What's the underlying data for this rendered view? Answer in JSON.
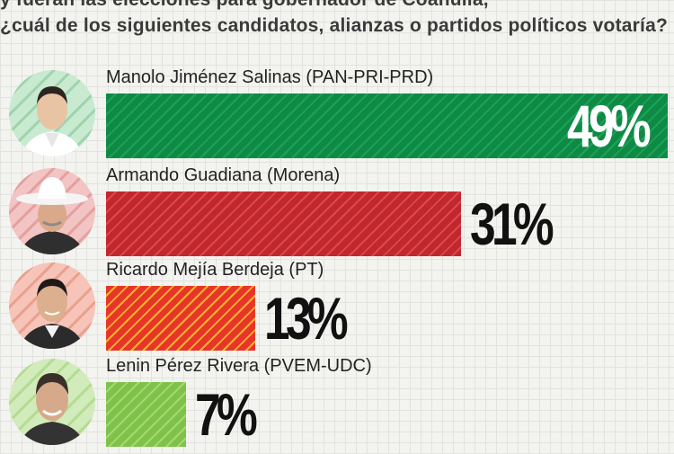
{
  "question": {
    "line1": "y fueran las elecciones para gobernador de Coahuila,",
    "line2": "¿cuál de los siguientes candidatos, alianzas o partidos políticos votaría?"
  },
  "chart_data": {
    "type": "bar",
    "orientation": "horizontal",
    "categories": [
      "Manolo Jiménez Salinas (PAN-PRI-PRD)",
      "Armando Guadiana (Morena)",
      "Ricardo Mejía Berdeja (PT)",
      "Lenin Pérez Rivera (PVEM-UDC)"
    ],
    "values": [
      49,
      31,
      13,
      7
    ],
    "labels": [
      "49%",
      "31%",
      "13%",
      "7%"
    ],
    "unit": "%",
    "xlim": [
      0,
      49
    ],
    "colors": [
      "#0f8a45",
      "#c1272d",
      "#e8352a",
      "#7fc24a"
    ],
    "stripe_colors": [
      "#1aa358",
      "#d94a4e",
      "#f7b529",
      "#a6d86f"
    ],
    "photo_tints": [
      "#c8ead0",
      "#f2c4c4",
      "#f6c4b8",
      "#d2ebbb"
    ],
    "grid": false,
    "legend": "none"
  }
}
